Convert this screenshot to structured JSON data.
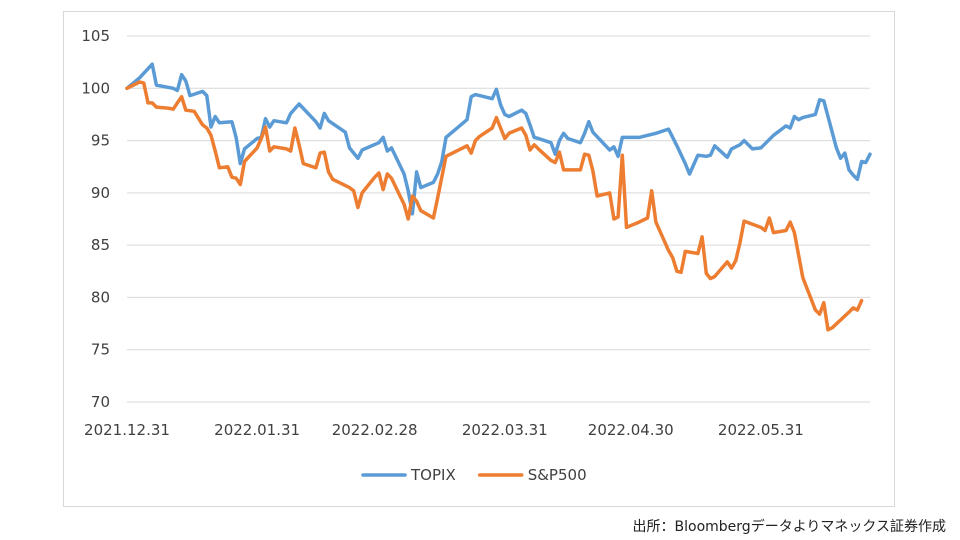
{
  "chart_data": {
    "type": "line",
    "title": "",
    "xlabel": "",
    "ylabel": "",
    "ylim": [
      70,
      105
    ],
    "yticks": [
      70,
      75,
      80,
      85,
      90,
      95,
      100,
      105
    ],
    "xlim": [
      "2021-12-31",
      "2022-06-26"
    ],
    "xtick_labels": [
      {
        "date": "2021-12-31",
        "label": "2021.12.31"
      },
      {
        "date": "2022-01-31",
        "label": "2022.01.31"
      },
      {
        "date": "2022-02-28",
        "label": "2022.02.28"
      },
      {
        "date": "2022-03-31",
        "label": "2022.03.31"
      },
      {
        "date": "2022-04-30",
        "label": "2022.04.30"
      },
      {
        "date": "2022-05-31",
        "label": "2022.05.31"
      }
    ],
    "grid": {
      "horizontal": true,
      "vertical": false
    },
    "legend": "bottom-center",
    "series": [
      {
        "name": "TOPIX",
        "color": "#5B9BD5",
        "points": [
          [
            "2021-12-31",
            100.0
          ],
          [
            "2022-01-03",
            101.0
          ],
          [
            "2022-01-06",
            102.3
          ],
          [
            "2022-01-07",
            100.3
          ],
          [
            "2022-01-11",
            100.0
          ],
          [
            "2022-01-12",
            99.8
          ],
          [
            "2022-01-13",
            101.3
          ],
          [
            "2022-01-14",
            100.7
          ],
          [
            "2022-01-15",
            99.3
          ],
          [
            "2022-01-18",
            99.7
          ],
          [
            "2022-01-19",
            99.3
          ],
          [
            "2022-01-20",
            96.3
          ],
          [
            "2022-01-21",
            97.3
          ],
          [
            "2022-01-22",
            96.7
          ],
          [
            "2022-01-25",
            96.8
          ],
          [
            "2022-01-26",
            95.3
          ],
          [
            "2022-01-27",
            92.8
          ],
          [
            "2022-01-28",
            94.2
          ],
          [
            "2022-01-31",
            95.2
          ],
          [
            "2022-02-01",
            95.3
          ],
          [
            "2022-02-02",
            97.1
          ],
          [
            "2022-02-03",
            96.3
          ],
          [
            "2022-02-04",
            96.9
          ],
          [
            "2022-02-07",
            96.7
          ],
          [
            "2022-02-08",
            97.6
          ],
          [
            "2022-02-10",
            98.5
          ],
          [
            "2022-02-14",
            96.8
          ],
          [
            "2022-02-15",
            96.2
          ],
          [
            "2022-02-16",
            97.6
          ],
          [
            "2022-02-17",
            96.9
          ],
          [
            "2022-02-21",
            95.8
          ],
          [
            "2022-02-22",
            94.3
          ],
          [
            "2022-02-24",
            93.3
          ],
          [
            "2022-02-25",
            94.1
          ],
          [
            "2022-03-01",
            94.8
          ],
          [
            "2022-03-02",
            95.3
          ],
          [
            "2022-03-03",
            94.0
          ],
          [
            "2022-03-04",
            94.3
          ],
          [
            "2022-03-07",
            91.8
          ],
          [
            "2022-03-08",
            90.2
          ],
          [
            "2022-03-09",
            88.0
          ],
          [
            "2022-03-10",
            92.0
          ],
          [
            "2022-03-11",
            90.5
          ],
          [
            "2022-03-14",
            91.0
          ],
          [
            "2022-03-15",
            91.8
          ],
          [
            "2022-03-16",
            93.0
          ],
          [
            "2022-03-17",
            95.3
          ],
          [
            "2022-03-22",
            97.0
          ],
          [
            "2022-03-23",
            99.2
          ],
          [
            "2022-03-24",
            99.4
          ],
          [
            "2022-03-25",
            99.3
          ],
          [
            "2022-03-28",
            99.0
          ],
          [
            "2022-03-29",
            99.9
          ],
          [
            "2022-03-30",
            98.4
          ],
          [
            "2022-03-31",
            97.5
          ],
          [
            "2022-04-01",
            97.3
          ],
          [
            "2022-04-04",
            97.9
          ],
          [
            "2022-04-05",
            97.6
          ],
          [
            "2022-04-06",
            96.5
          ],
          [
            "2022-04-07",
            95.3
          ],
          [
            "2022-04-08",
            95.2
          ],
          [
            "2022-04-11",
            94.8
          ],
          [
            "2022-04-12",
            93.7
          ],
          [
            "2022-04-13",
            95.0
          ],
          [
            "2022-04-14",
            95.7
          ],
          [
            "2022-04-15",
            95.2
          ],
          [
            "2022-04-18",
            94.8
          ],
          [
            "2022-04-19",
            95.7
          ],
          [
            "2022-04-20",
            96.8
          ],
          [
            "2022-04-21",
            95.8
          ],
          [
            "2022-04-25",
            94.1
          ],
          [
            "2022-04-26",
            94.4
          ],
          [
            "2022-04-27",
            93.5
          ],
          [
            "2022-04-28",
            95.3
          ],
          [
            "2022-05-02",
            95.3
          ],
          [
            "2022-05-06",
            95.7
          ],
          [
            "2022-05-09",
            96.1
          ],
          [
            "2022-05-10",
            95.3
          ],
          [
            "2022-05-11",
            94.5
          ],
          [
            "2022-05-13",
            92.8
          ],
          [
            "2022-05-14",
            91.8
          ],
          [
            "2022-05-16",
            93.6
          ],
          [
            "2022-05-18",
            93.5
          ],
          [
            "2022-05-19",
            93.6
          ],
          [
            "2022-05-20",
            94.5
          ],
          [
            "2022-05-23",
            93.4
          ],
          [
            "2022-05-24",
            94.2
          ],
          [
            "2022-05-26",
            94.6
          ],
          [
            "2022-05-27",
            95.0
          ],
          [
            "2022-05-29",
            94.2
          ],
          [
            "2022-05-31",
            94.3
          ],
          [
            "2022-06-03",
            95.5
          ],
          [
            "2022-06-06",
            96.4
          ],
          [
            "2022-06-07",
            96.2
          ],
          [
            "2022-06-08",
            97.3
          ],
          [
            "2022-06-09",
            97.0
          ],
          [
            "2022-06-10",
            97.2
          ],
          [
            "2022-06-13",
            97.5
          ],
          [
            "2022-06-14",
            98.9
          ],
          [
            "2022-06-15",
            98.8
          ],
          [
            "2022-06-16",
            97.3
          ],
          [
            "2022-06-17",
            95.8
          ],
          [
            "2022-06-18",
            94.3
          ],
          [
            "2022-06-19",
            93.3
          ],
          [
            "2022-06-20",
            93.8
          ],
          [
            "2022-06-21",
            92.2
          ],
          [
            "2022-06-22",
            91.7
          ],
          [
            "2022-06-23",
            91.3
          ],
          [
            "2022-06-24",
            93.0
          ],
          [
            "2022-06-25",
            92.9
          ],
          [
            "2022-06-26",
            93.7
          ]
        ]
      },
      {
        "name": "S&P500",
        "color": "#ED7D31",
        "points": [
          [
            "2021-12-31",
            100.0
          ],
          [
            "2022-01-03",
            100.6
          ],
          [
            "2022-01-04",
            100.5
          ],
          [
            "2022-01-05",
            98.6
          ],
          [
            "2022-01-06",
            98.6
          ],
          [
            "2022-01-07",
            98.2
          ],
          [
            "2022-01-10",
            98.1
          ],
          [
            "2022-01-11",
            98.0
          ],
          [
            "2022-01-12",
            98.6
          ],
          [
            "2022-01-13",
            99.2
          ],
          [
            "2022-01-14",
            97.9
          ],
          [
            "2022-01-16",
            97.8
          ],
          [
            "2022-01-18",
            96.5
          ],
          [
            "2022-01-19",
            96.2
          ],
          [
            "2022-01-20",
            95.5
          ],
          [
            "2022-01-21",
            94.0
          ],
          [
            "2022-01-22",
            92.4
          ],
          [
            "2022-01-24",
            92.5
          ],
          [
            "2022-01-25",
            91.5
          ],
          [
            "2022-01-26",
            91.4
          ],
          [
            "2022-01-27",
            90.8
          ],
          [
            "2022-01-28",
            93.0
          ],
          [
            "2022-01-31",
            94.3
          ],
          [
            "2022-02-01",
            95.2
          ],
          [
            "2022-02-02",
            96.3
          ],
          [
            "2022-02-03",
            94.0
          ],
          [
            "2022-02-04",
            94.4
          ],
          [
            "2022-02-07",
            94.2
          ],
          [
            "2022-02-08",
            94.0
          ],
          [
            "2022-02-09",
            96.2
          ],
          [
            "2022-02-10",
            94.6
          ],
          [
            "2022-02-11",
            92.8
          ],
          [
            "2022-02-14",
            92.4
          ],
          [
            "2022-02-15",
            93.8
          ],
          [
            "2022-02-16",
            93.9
          ],
          [
            "2022-02-17",
            92.0
          ],
          [
            "2022-02-18",
            91.3
          ],
          [
            "2022-02-22",
            90.5
          ],
          [
            "2022-02-23",
            90.2
          ],
          [
            "2022-02-24",
            88.6
          ],
          [
            "2022-02-25",
            90.0
          ],
          [
            "2022-02-28",
            91.5
          ],
          [
            "2022-03-01",
            91.9
          ],
          [
            "2022-03-02",
            90.3
          ],
          [
            "2022-03-03",
            91.8
          ],
          [
            "2022-03-04",
            91.4
          ],
          [
            "2022-03-07",
            88.9
          ],
          [
            "2022-03-08",
            87.5
          ],
          [
            "2022-03-09",
            89.7
          ],
          [
            "2022-03-10",
            89.2
          ],
          [
            "2022-03-11",
            88.3
          ],
          [
            "2022-03-14",
            87.6
          ],
          [
            "2022-03-15",
            89.5
          ],
          [
            "2022-03-16",
            91.5
          ],
          [
            "2022-03-17",
            93.5
          ],
          [
            "2022-03-21",
            94.3
          ],
          [
            "2022-03-22",
            94.5
          ],
          [
            "2022-03-23",
            93.8
          ],
          [
            "2022-03-24",
            95.0
          ],
          [
            "2022-03-25",
            95.4
          ],
          [
            "2022-03-28",
            96.2
          ],
          [
            "2022-03-29",
            97.2
          ],
          [
            "2022-03-30",
            96.2
          ],
          [
            "2022-03-31",
            95.2
          ],
          [
            "2022-04-01",
            95.7
          ],
          [
            "2022-04-04",
            96.2
          ],
          [
            "2022-04-05",
            95.5
          ],
          [
            "2022-04-06",
            94.1
          ],
          [
            "2022-04-07",
            94.6
          ],
          [
            "2022-04-08",
            94.2
          ],
          [
            "2022-04-11",
            93.1
          ],
          [
            "2022-04-12",
            92.9
          ],
          [
            "2022-04-13",
            93.9
          ],
          [
            "2022-04-14",
            92.2
          ],
          [
            "2022-04-18",
            92.2
          ],
          [
            "2022-04-19",
            93.7
          ],
          [
            "2022-04-20",
            93.6
          ],
          [
            "2022-04-21",
            92.1
          ],
          [
            "2022-04-22",
            89.7
          ],
          [
            "2022-04-25",
            90.0
          ],
          [
            "2022-04-26",
            87.5
          ],
          [
            "2022-04-27",
            87.7
          ],
          [
            "2022-04-28",
            93.6
          ],
          [
            "2022-04-29",
            86.7
          ],
          [
            "2022-05-02",
            87.2
          ],
          [
            "2022-05-04",
            87.6
          ],
          [
            "2022-05-05",
            90.2
          ],
          [
            "2022-05-06",
            87.2
          ],
          [
            "2022-05-09",
            84.5
          ],
          [
            "2022-05-10",
            83.8
          ],
          [
            "2022-05-11",
            82.5
          ],
          [
            "2022-05-12",
            82.4
          ],
          [
            "2022-05-13",
            84.4
          ],
          [
            "2022-05-16",
            84.2
          ],
          [
            "2022-05-17",
            85.8
          ],
          [
            "2022-05-18",
            82.3
          ],
          [
            "2022-05-19",
            81.8
          ],
          [
            "2022-05-20",
            82.0
          ],
          [
            "2022-05-23",
            83.4
          ],
          [
            "2022-05-24",
            82.8
          ],
          [
            "2022-05-25",
            83.5
          ],
          [
            "2022-05-26",
            85.2
          ],
          [
            "2022-05-27",
            87.3
          ],
          [
            "2022-05-31",
            86.7
          ],
          [
            "2022-06-01",
            86.4
          ],
          [
            "2022-06-02",
            87.6
          ],
          [
            "2022-06-03",
            86.2
          ],
          [
            "2022-06-06",
            86.4
          ],
          [
            "2022-06-07",
            87.2
          ],
          [
            "2022-06-08",
            86.2
          ],
          [
            "2022-06-10",
            81.9
          ],
          [
            "2022-06-13",
            78.8
          ],
          [
            "2022-06-14",
            78.4
          ],
          [
            "2022-06-15",
            79.5
          ],
          [
            "2022-06-16",
            76.9
          ],
          [
            "2022-06-17",
            77.1
          ],
          [
            "2022-06-21",
            78.6
          ],
          [
            "2022-06-22",
            79.0
          ],
          [
            "2022-06-23",
            78.8
          ],
          [
            "2022-06-24",
            79.7
          ]
        ]
      }
    ]
  },
  "source_note": "出所：Bloombergデータよりマネックス証券作成"
}
